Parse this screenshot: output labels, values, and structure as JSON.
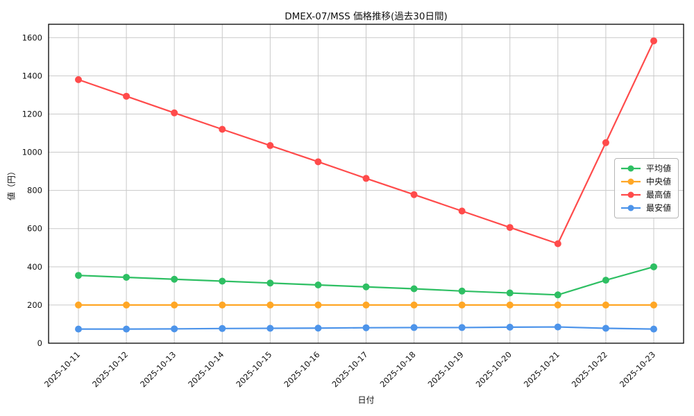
{
  "chart_data": {
    "type": "line",
    "title": "DMEX-07/MSS 価格推移(過去30日間)",
    "xlabel": "日付",
    "ylabel": "値（円）",
    "x": [
      "2025-10-11",
      "2025-10-12",
      "2025-10-13",
      "2025-10-14",
      "2025-10-15",
      "2025-10-16",
      "2025-10-17",
      "2025-10-18",
      "2025-10-19",
      "2025-10-20",
      "2025-10-21",
      "2025-10-22",
      "2025-10-23"
    ],
    "series": [
      {
        "id": "avg",
        "name": "平均値",
        "color": "#2ebf63",
        "values": [
          355,
          345,
          335,
          325,
          315,
          305,
          295,
          285,
          273,
          263,
          253,
          330,
          400
        ]
      },
      {
        "id": "median",
        "name": "中央値",
        "color": "#ffa726",
        "values": [
          200,
          200,
          200,
          200,
          200,
          200,
          200,
          200,
          200,
          200,
          200,
          200,
          200
        ]
      },
      {
        "id": "max",
        "name": "最高値",
        "color": "#ff4b4b",
        "values": [
          1380,
          1293,
          1206,
          1120,
          1035,
          950,
          863,
          778,
          692,
          606,
          521,
          1050,
          1583
        ]
      },
      {
        "id": "min",
        "name": "最安値",
        "color": "#4d94ea",
        "values": [
          74,
          74,
          75,
          77,
          78,
          79,
          81,
          82,
          82,
          84,
          85,
          78,
          74
        ]
      }
    ],
    "ylim": [
      0,
      1670
    ],
    "yticks": [
      0,
      200,
      400,
      600,
      800,
      1000,
      1200,
      1400,
      1600
    ],
    "grid": true,
    "legend_position": "center right"
  }
}
